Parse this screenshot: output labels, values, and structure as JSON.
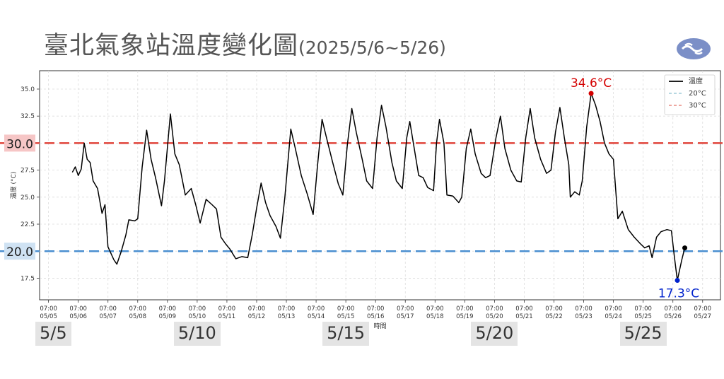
{
  "title": {
    "main": "臺北氣象站溫度變化圖",
    "range": "(2025/5/6~5/26)"
  },
  "logo": {
    "icon": "cwa-logo-icon"
  },
  "chart_data": {
    "type": "line",
    "ylabel": "溫度 (°C)",
    "xlabel": "時間",
    "ylim": [
      15.5,
      36.7
    ],
    "yticks": [
      "17.5",
      "20.0",
      "22.5",
      "25.0",
      "27.5",
      "30.0",
      "32.5",
      "35.0"
    ],
    "xticks": [
      {
        "time": "07:00",
        "date": "05/05",
        "day": 0
      },
      {
        "time": "07:00",
        "date": "05/06",
        "day": 1
      },
      {
        "time": "07:00",
        "date": "05/07",
        "day": 2
      },
      {
        "time": "07:00",
        "date": "05/08",
        "day": 3
      },
      {
        "time": "07:00",
        "date": "05/09",
        "day": 4
      },
      {
        "time": "07:00",
        "date": "05/10",
        "day": 5
      },
      {
        "time": "07:00",
        "date": "05/11",
        "day": 6
      },
      {
        "time": "07:00",
        "date": "05/12",
        "day": 7
      },
      {
        "time": "07:00",
        "date": "05/13",
        "day": 8
      },
      {
        "time": "07:00",
        "date": "05/14",
        "day": 9
      },
      {
        "time": "07:00",
        "date": "05/15",
        "day": 10
      },
      {
        "time": "07:00",
        "date": "05/16",
        "day": 11
      },
      {
        "time": "07:00",
        "date": "05/17",
        "day": 12
      },
      {
        "time": "07:00",
        "date": "05/18",
        "day": 13
      },
      {
        "time": "07:00",
        "date": "05/19",
        "day": 14
      },
      {
        "time": "07:00",
        "date": "05/20",
        "day": 15
      },
      {
        "time": "07:00",
        "date": "05/21",
        "day": 16
      },
      {
        "time": "07:00",
        "date": "05/22",
        "day": 17
      },
      {
        "time": "07:00",
        "date": "05/23",
        "day": 18
      },
      {
        "time": "07:00",
        "date": "05/24",
        "day": 19
      },
      {
        "time": "07:00",
        "date": "05/25",
        "day": 20
      },
      {
        "time": "07:00",
        "date": "05/26",
        "day": 21
      },
      {
        "time": "07:00",
        "date": "05/27",
        "day": 22
      }
    ],
    "xlim_days": [
      -0.3,
      22.6
    ],
    "series": [
      {
        "name": "溫度",
        "color": "#000000",
        "points": [
          [
            0.8,
            27.3
          ],
          [
            0.9,
            27.8
          ],
          [
            1.0,
            27.0
          ],
          [
            1.1,
            27.6
          ],
          [
            1.2,
            30.0
          ],
          [
            1.3,
            28.5
          ],
          [
            1.4,
            28.2
          ],
          [
            1.5,
            26.5
          ],
          [
            1.65,
            25.8
          ],
          [
            1.8,
            23.5
          ],
          [
            1.9,
            24.3
          ],
          [
            2.0,
            20.4
          ],
          [
            2.2,
            19.2
          ],
          [
            2.3,
            18.8
          ],
          [
            2.45,
            20.0
          ],
          [
            2.6,
            21.5
          ],
          [
            2.7,
            22.9
          ],
          [
            2.9,
            22.8
          ],
          [
            3.0,
            23.0
          ],
          [
            3.15,
            27.8
          ],
          [
            3.3,
            31.2
          ],
          [
            3.45,
            28.5
          ],
          [
            3.6,
            26.8
          ],
          [
            3.8,
            24.2
          ],
          [
            3.9,
            26.5
          ],
          [
            4.1,
            32.7
          ],
          [
            4.25,
            29.0
          ],
          [
            4.4,
            28.0
          ],
          [
            4.6,
            25.2
          ],
          [
            4.8,
            25.8
          ],
          [
            4.95,
            24.3
          ],
          [
            5.1,
            22.6
          ],
          [
            5.3,
            24.8
          ],
          [
            5.5,
            24.3
          ],
          [
            5.65,
            23.9
          ],
          [
            5.8,
            21.3
          ],
          [
            5.95,
            20.7
          ],
          [
            6.1,
            20.2
          ],
          [
            6.3,
            19.3
          ],
          [
            6.5,
            19.5
          ],
          [
            6.7,
            19.4
          ],
          [
            6.85,
            21.5
          ],
          [
            7.0,
            24.0
          ],
          [
            7.15,
            26.3
          ],
          [
            7.3,
            24.5
          ],
          [
            7.45,
            23.3
          ],
          [
            7.65,
            22.3
          ],
          [
            7.8,
            21.2
          ],
          [
            7.95,
            25.0
          ],
          [
            8.15,
            31.3
          ],
          [
            8.3,
            29.5
          ],
          [
            8.5,
            27.0
          ],
          [
            8.7,
            25.3
          ],
          [
            8.9,
            23.4
          ],
          [
            9.05,
            28.0
          ],
          [
            9.2,
            32.2
          ],
          [
            9.35,
            30.5
          ],
          [
            9.55,
            28.3
          ],
          [
            9.75,
            26.2
          ],
          [
            9.9,
            25.2
          ],
          [
            10.05,
            29.8
          ],
          [
            10.2,
            33.2
          ],
          [
            10.35,
            31.0
          ],
          [
            10.55,
            28.5
          ],
          [
            10.7,
            26.5
          ],
          [
            10.9,
            25.8
          ],
          [
            11.05,
            30.5
          ],
          [
            11.2,
            33.5
          ],
          [
            11.35,
            31.5
          ],
          [
            11.55,
            28.2
          ],
          [
            11.7,
            26.5
          ],
          [
            11.9,
            25.8
          ],
          [
            12.05,
            30.5
          ],
          [
            12.15,
            32.0
          ],
          [
            12.3,
            29.5
          ],
          [
            12.45,
            27.0
          ],
          [
            12.6,
            26.8
          ],
          [
            12.75,
            25.9
          ],
          [
            12.95,
            25.6
          ],
          [
            13.05,
            30.0
          ],
          [
            13.15,
            32.2
          ],
          [
            13.3,
            30.0
          ],
          [
            13.4,
            25.2
          ],
          [
            13.6,
            25.1
          ],
          [
            13.8,
            24.5
          ],
          [
            13.9,
            25.0
          ],
          [
            14.05,
            29.5
          ],
          [
            14.2,
            31.3
          ],
          [
            14.35,
            29.0
          ],
          [
            14.55,
            27.2
          ],
          [
            14.7,
            26.8
          ],
          [
            14.85,
            27.0
          ],
          [
            15.05,
            30.5
          ],
          [
            15.2,
            32.5
          ],
          [
            15.35,
            29.5
          ],
          [
            15.55,
            27.5
          ],
          [
            15.75,
            26.5
          ],
          [
            15.9,
            26.4
          ],
          [
            16.05,
            30.5
          ],
          [
            16.2,
            33.2
          ],
          [
            16.35,
            30.5
          ],
          [
            16.55,
            28.5
          ],
          [
            16.75,
            27.2
          ],
          [
            16.9,
            27.5
          ],
          [
            17.05,
            31.0
          ],
          [
            17.2,
            33.3
          ],
          [
            17.35,
            30.5
          ],
          [
            17.5,
            28.0
          ],
          [
            17.55,
            25.0
          ],
          [
            17.7,
            25.5
          ],
          [
            17.85,
            25.2
          ],
          [
            17.95,
            26.5
          ],
          [
            18.1,
            31.5
          ],
          [
            18.25,
            34.6
          ],
          [
            18.4,
            33.5
          ],
          [
            18.55,
            32.0
          ],
          [
            18.7,
            30.0
          ],
          [
            18.85,
            29.0
          ],
          [
            19.0,
            28.5
          ],
          [
            19.15,
            23.0
          ],
          [
            19.3,
            23.7
          ],
          [
            19.5,
            22.0
          ],
          [
            19.7,
            21.3
          ],
          [
            19.9,
            20.7
          ],
          [
            20.05,
            20.3
          ],
          [
            20.2,
            20.5
          ],
          [
            20.3,
            19.4
          ],
          [
            20.45,
            21.3
          ],
          [
            20.6,
            21.8
          ],
          [
            20.8,
            22.0
          ],
          [
            20.95,
            21.9
          ],
          [
            21.05,
            19.5
          ],
          [
            21.15,
            17.3
          ],
          [
            21.3,
            19.2
          ],
          [
            21.4,
            20.3
          ]
        ]
      },
      {
        "name": "20°C",
        "value": 20,
        "color": "#4a8fd0"
      },
      {
        "name": "30°C",
        "value": 30,
        "color": "#e0453c"
      }
    ],
    "annotations": [
      {
        "label": "34.6°C",
        "day": 18.25,
        "value": 34.6,
        "color": "#d40000",
        "marker": "#d40000"
      },
      {
        "label": "17.3°C",
        "day": 21.15,
        "value": 17.3,
        "color": "#0022cc",
        "marker": "#0022cc"
      },
      {
        "label": "",
        "day": 21.4,
        "value": 20.3,
        "color": "#000000",
        "marker": "#000000"
      }
    ],
    "reference_labels": [
      {
        "label": "30.0",
        "value": 30,
        "background": "#f6c6c6"
      },
      {
        "label": "20.0",
        "value": 20,
        "background": "#cfe2f3"
      }
    ],
    "date_labels": [
      {
        "label": "5/5",
        "day": 0
      },
      {
        "label": "5/10",
        "day": 5
      },
      {
        "label": "5/15",
        "day": 10
      },
      {
        "label": "5/20",
        "day": 15
      },
      {
        "label": "5/25",
        "day": 20
      }
    ],
    "legend": {
      "position": "top-right",
      "entries": [
        {
          "label": "溫度",
          "color": "#000000",
          "style": "solid"
        },
        {
          "label": "20°C",
          "color": "#9fcbd8",
          "style": "dashed"
        },
        {
          "label": "30°C",
          "color": "#e88a80",
          "style": "dashed"
        }
      ]
    },
    "grid": true
  }
}
